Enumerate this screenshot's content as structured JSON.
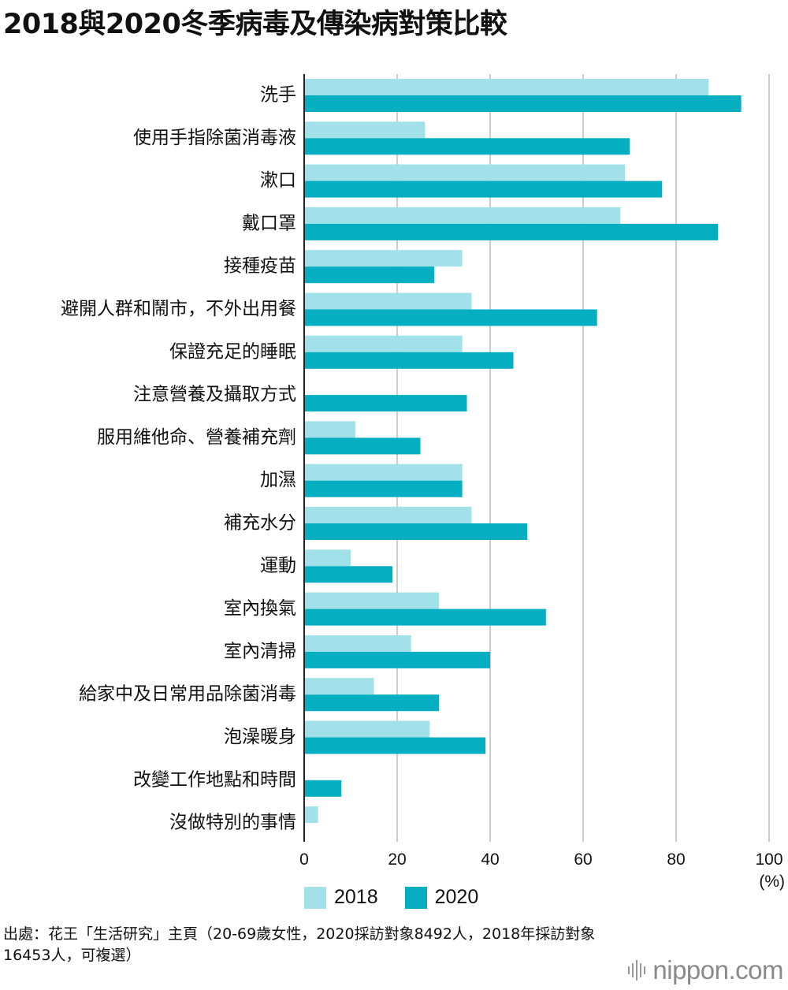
{
  "colors": {
    "s2018": "#a2e1e9",
    "s2020": "#05aec0",
    "grid": "#cccccc",
    "axis": "#222222"
  },
  "chart_data": {
    "type": "bar",
    "orientation": "horizontal",
    "title": "2018與2020冬季病毒及傳染病對策比較",
    "unit": "(%)",
    "xlim": [
      0,
      100
    ],
    "xticks": [
      "0",
      "20",
      "40",
      "60",
      "80",
      "100"
    ],
    "xtick_values": [
      0,
      20,
      40,
      60,
      80,
      100
    ],
    "grid": true,
    "legend_position": "bottom",
    "categories": [
      "洗手",
      "使用手指除菌消毒液",
      "漱口",
      "戴口罩",
      "接種疫苗",
      "避開人群和鬧市，不外出用餐",
      "保證充足的睡眠",
      "注意營養及攝取方式",
      "服用維他命、營養補充劑",
      "加濕",
      "補充水分",
      "運動",
      "室內換氣",
      "室內清掃",
      "給家中及日常用品除菌消毒",
      "泡澡暖身",
      "改變工作地點和時間",
      "沒做特別的事情"
    ],
    "series": [
      {
        "name": "2018",
        "values": [
          87,
          26,
          69,
          68,
          34,
          36,
          34,
          0,
          11,
          34,
          36,
          10,
          29,
          23,
          15,
          27,
          0,
          3
        ]
      },
      {
        "name": "2020",
        "values": [
          94,
          70,
          77,
          89,
          28,
          63,
          45,
          35,
          25,
          34,
          48,
          19,
          52,
          40,
          29,
          39,
          8,
          0
        ]
      }
    ]
  },
  "source": "出處：花王「生活研究」主頁（20-69歲女性，2020採訪對象8492人，2018年採訪對象16453人，可複選）",
  "logo": {
    "text": "nippon.com"
  }
}
